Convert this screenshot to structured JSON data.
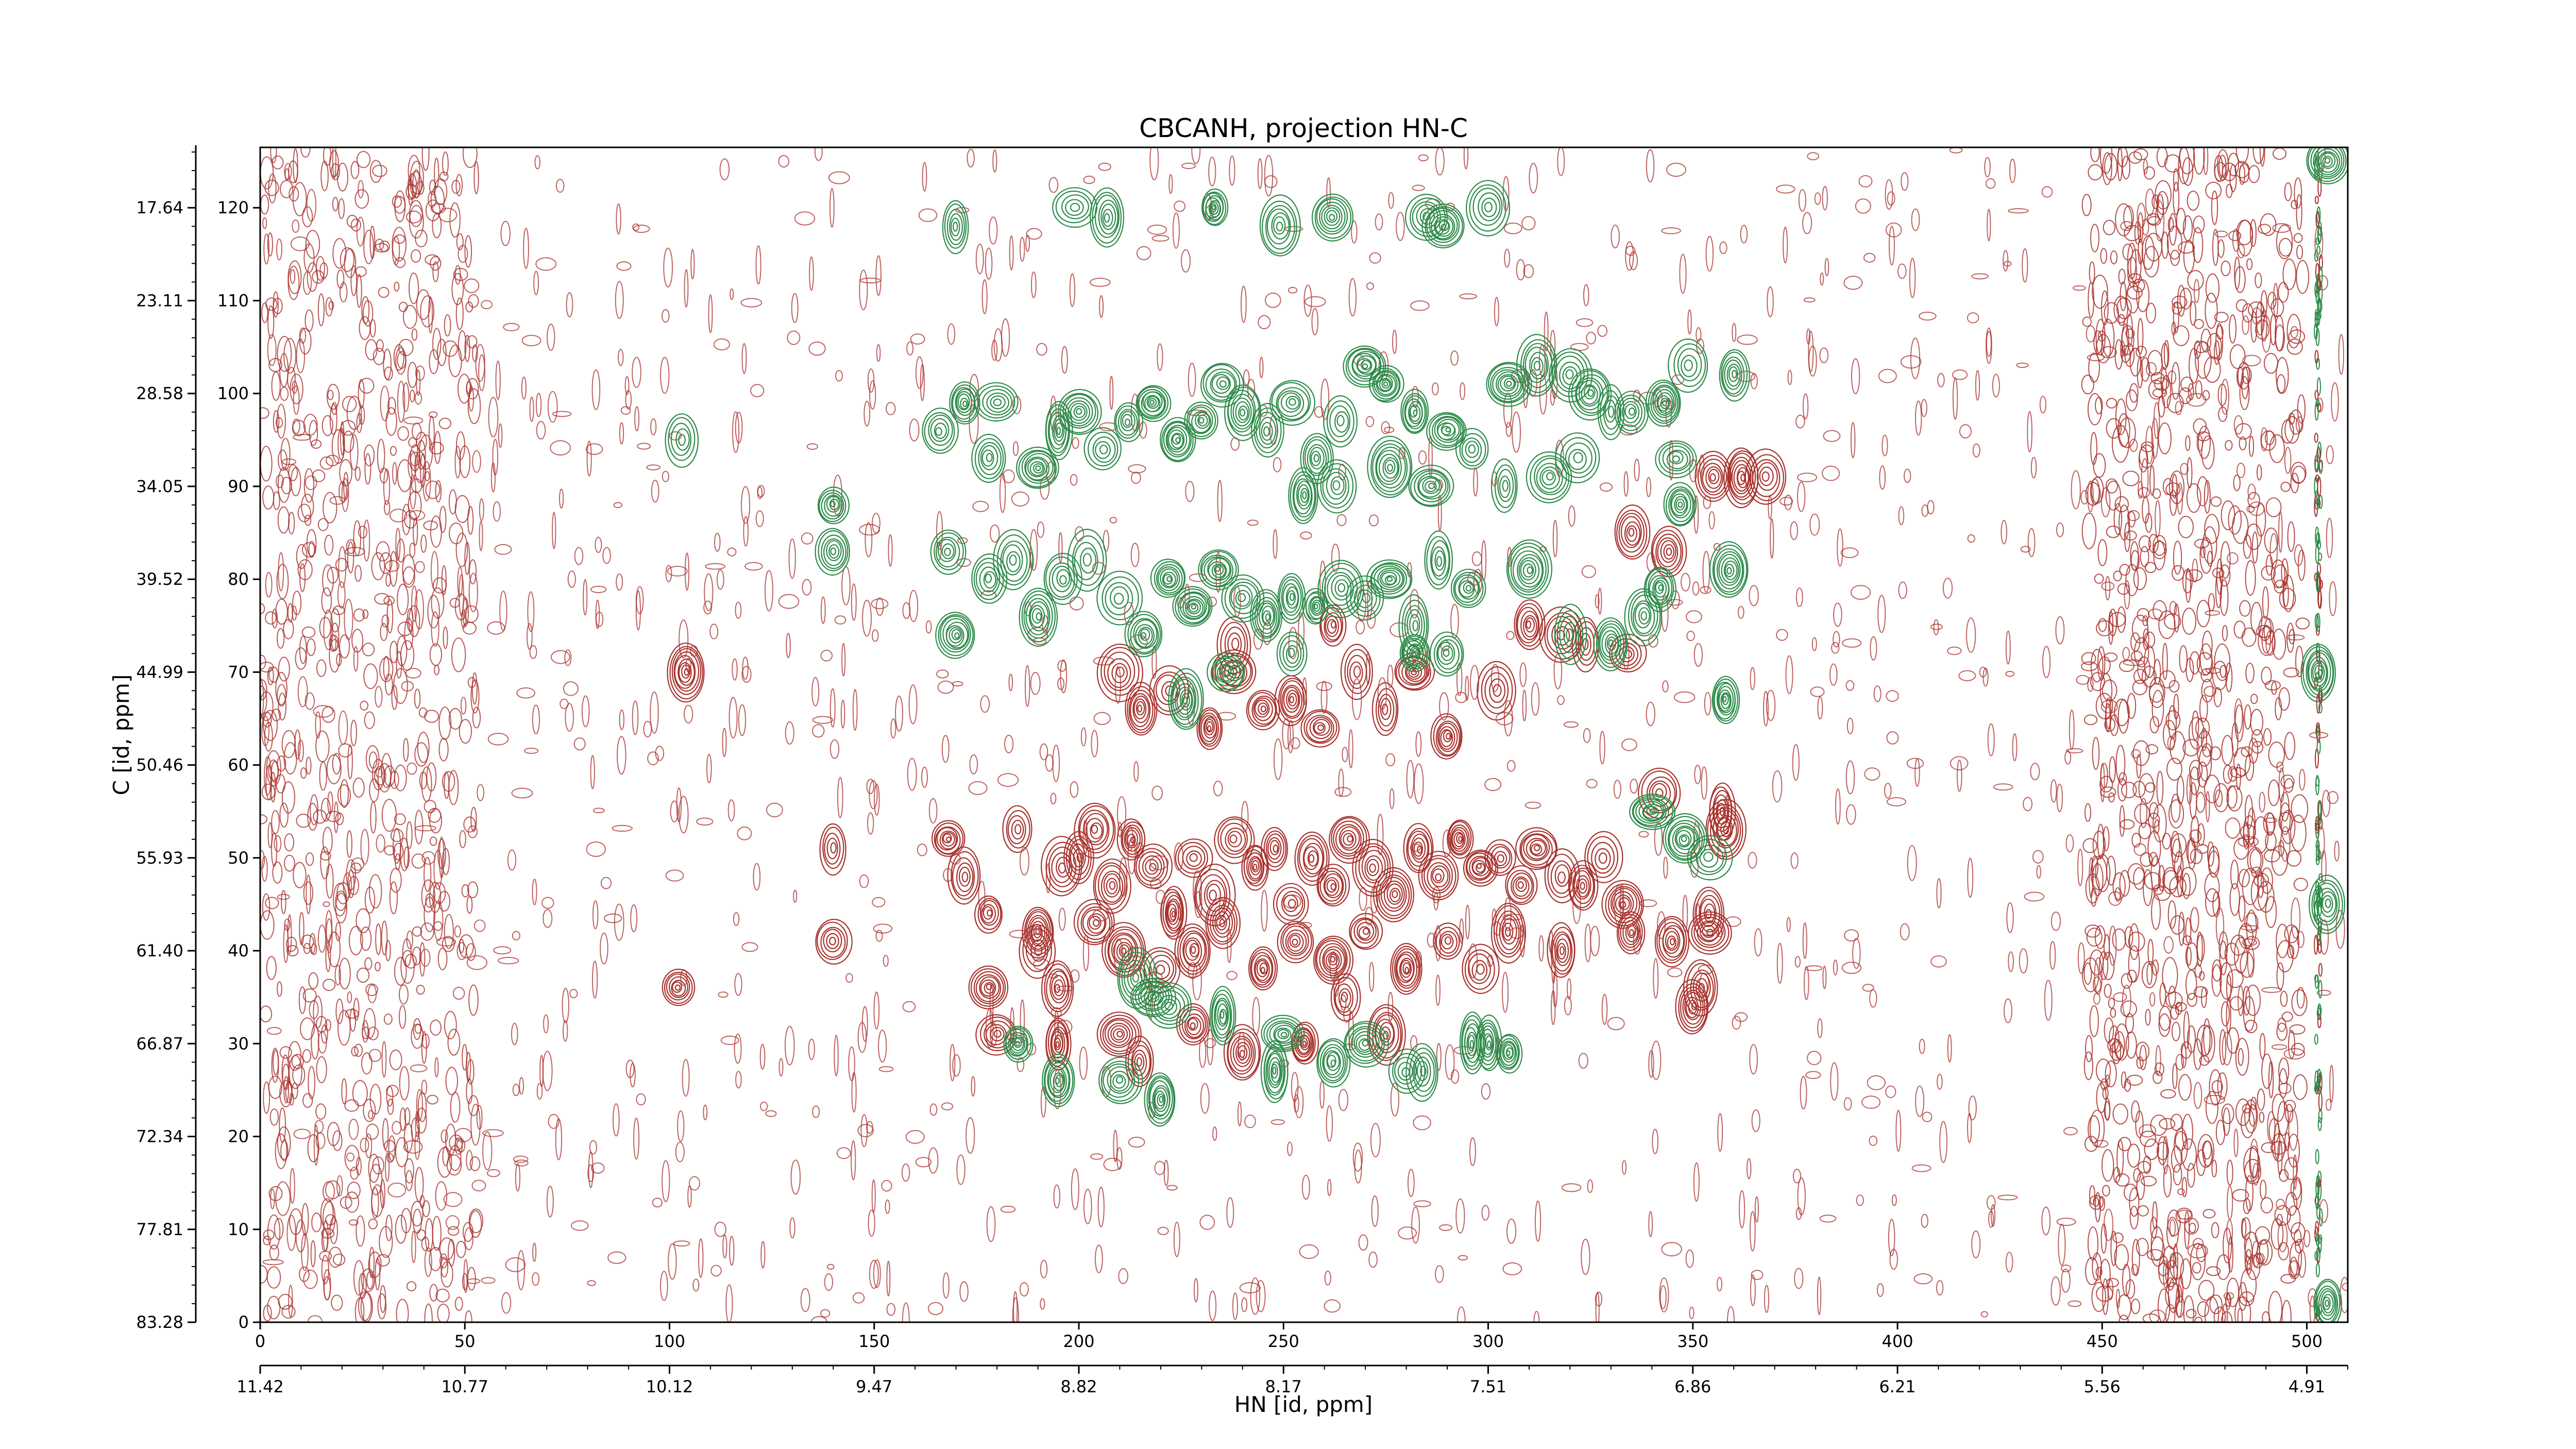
{
  "chart_data": {
    "type": "contour",
    "title": "CBCANH, projection HN-C",
    "xlabel": "HN [id, ppm]",
    "ylabel": "C [id, ppm]",
    "x_index_ticks": [
      "0",
      "50",
      "100",
      "150",
      "200",
      "250",
      "300",
      "350",
      "400",
      "450",
      "500"
    ],
    "x_ppm_ticks": [
      "11.42",
      "10.77",
      "10.12",
      "9.47",
      "8.82",
      "8.17",
      "7.51",
      "6.86",
      "6.21",
      "5.56",
      "4.91"
    ],
    "y_index_ticks": [
      "0",
      "10",
      "20",
      "30",
      "40",
      "50",
      "60",
      "70",
      "80",
      "90",
      "100",
      "110",
      "120"
    ],
    "y_ppm_ticks": [
      "83.28",
      "77.81",
      "72.34",
      "66.87",
      "61.40",
      "55.93",
      "50.46",
      "44.99",
      "39.52",
      "34.05",
      "28.58",
      "23.11",
      "17.64"
    ],
    "xlim": [
      0,
      510
    ],
    "ylim": [
      0,
      126.5
    ],
    "grid": false,
    "colors": {
      "positive": "#a8322d",
      "negative": "#2e8b4a"
    },
    "positive_peaks": [
      [
        104,
        70
      ],
      [
        140,
        51
      ],
      [
        140,
        41
      ],
      [
        102,
        36
      ],
      [
        168,
        52
      ],
      [
        172,
        48
      ],
      [
        178,
        44
      ],
      [
        185,
        53
      ],
      [
        190,
        42
      ],
      [
        196,
        49
      ],
      [
        200,
        50
      ],
      [
        204,
        53
      ],
      [
        208,
        47
      ],
      [
        213,
        52
      ],
      [
        218,
        49
      ],
      [
        223,
        44
      ],
      [
        228,
        50
      ],
      [
        233,
        46
      ],
      [
        238,
        52
      ],
      [
        243,
        49
      ],
      [
        248,
        51
      ],
      [
        252,
        45
      ],
      [
        257,
        50
      ],
      [
        262,
        47
      ],
      [
        266,
        52
      ],
      [
        272,
        49
      ],
      [
        277,
        46
      ],
      [
        283,
        51
      ],
      [
        288,
        48
      ],
      [
        293,
        52
      ],
      [
        298,
        49
      ],
      [
        303,
        50
      ],
      [
        308,
        47
      ],
      [
        312,
        51
      ],
      [
        318,
        48
      ],
      [
        323,
        47
      ],
      [
        328,
        50
      ],
      [
        333,
        45
      ],
      [
        190,
        40
      ],
      [
        195,
        36
      ],
      [
        204,
        43
      ],
      [
        211,
        40
      ],
      [
        220,
        38
      ],
      [
        228,
        40
      ],
      [
        235,
        43
      ],
      [
        245,
        38
      ],
      [
        253,
        41
      ],
      [
        262,
        39
      ],
      [
        270,
        42
      ],
      [
        280,
        38
      ],
      [
        290,
        41
      ],
      [
        298,
        38
      ],
      [
        305,
        42
      ],
      [
        318,
        40
      ],
      [
        335,
        42
      ],
      [
        345,
        41
      ],
      [
        354,
        42
      ],
      [
        357,
        55
      ],
      [
        354,
        44
      ],
      [
        352,
        36
      ],
      [
        350,
        34
      ],
      [
        178,
        36
      ],
      [
        180,
        31
      ],
      [
        195,
        30
      ],
      [
        210,
        31
      ],
      [
        215,
        28
      ],
      [
        228,
        32
      ],
      [
        240,
        29
      ],
      [
        255,
        30
      ],
      [
        265,
        35
      ],
      [
        275,
        31
      ],
      [
        210,
        70
      ],
      [
        215,
        66
      ],
      [
        222,
        68
      ],
      [
        232,
        64
      ],
      [
        238,
        70
      ],
      [
        245,
        66
      ],
      [
        252,
        67
      ],
      [
        259,
        64
      ],
      [
        268,
        70
      ],
      [
        275,
        66
      ],
      [
        282,
        70
      ],
      [
        290,
        63
      ],
      [
        302,
        68
      ],
      [
        238,
        73
      ],
      [
        262,
        75
      ],
      [
        310,
        75
      ],
      [
        318,
        74
      ],
      [
        324,
        73
      ],
      [
        334,
        72
      ],
      [
        342,
        57
      ],
      [
        335,
        85
      ],
      [
        344,
        83
      ],
      [
        355,
        91
      ],
      [
        362,
        91
      ],
      [
        368,
        91
      ],
      [
        358,
        53
      ]
    ],
    "negative_peaks": [
      [
        170,
        118
      ],
      [
        199,
        120
      ],
      [
        207,
        119
      ],
      [
        233,
        120
      ],
      [
        249,
        118
      ],
      [
        262,
        119
      ],
      [
        285,
        119
      ],
      [
        289,
        118
      ],
      [
        300,
        120
      ],
      [
        347,
        88
      ],
      [
        103,
        95
      ],
      [
        140,
        88
      ],
      [
        140,
        83
      ],
      [
        166,
        96
      ],
      [
        172,
        99
      ],
      [
        178,
        93
      ],
      [
        180,
        99
      ],
      [
        190,
        92
      ],
      [
        195,
        96
      ],
      [
        200,
        98
      ],
      [
        206,
        94
      ],
      [
        212,
        97
      ],
      [
        218,
        99
      ],
      [
        224,
        95
      ],
      [
        230,
        97
      ],
      [
        235,
        101
      ],
      [
        240,
        98
      ],
      [
        246,
        96
      ],
      [
        252,
        99
      ],
      [
        258,
        93
      ],
      [
        264,
        97
      ],
      [
        270,
        103
      ],
      [
        275,
        101
      ],
      [
        282,
        98
      ],
      [
        290,
        96
      ],
      [
        296,
        94
      ],
      [
        305,
        101
      ],
      [
        312,
        103
      ],
      [
        320,
        102
      ],
      [
        325,
        100
      ],
      [
        330,
        98
      ],
      [
        335,
        98
      ],
      [
        349,
        103
      ],
      [
        360,
        102
      ],
      [
        263,
        90
      ],
      [
        255,
        89
      ],
      [
        276,
        92
      ],
      [
        286,
        90
      ],
      [
        304,
        90
      ],
      [
        315,
        91
      ],
      [
        322,
        93
      ],
      [
        343,
        99
      ],
      [
        346,
        93
      ],
      [
        168,
        83
      ],
      [
        170,
        74
      ],
      [
        178,
        80
      ],
      [
        184,
        82
      ],
      [
        190,
        76
      ],
      [
        196,
        80
      ],
      [
        202,
        82
      ],
      [
        210,
        78
      ],
      [
        216,
        74
      ],
      [
        222,
        80
      ],
      [
        228,
        77
      ],
      [
        234,
        81
      ],
      [
        240,
        78
      ],
      [
        246,
        76
      ],
      [
        252,
        78
      ],
      [
        258,
        77
      ],
      [
        264,
        79
      ],
      [
        270,
        78
      ],
      [
        276,
        80
      ],
      [
        282,
        75
      ],
      [
        288,
        82
      ],
      [
        295,
        79
      ],
      [
        310,
        81
      ],
      [
        320,
        74
      ],
      [
        330,
        73
      ],
      [
        338,
        76
      ],
      [
        342,
        79
      ],
      [
        359,
        81
      ],
      [
        358,
        67
      ],
      [
        226,
        67
      ],
      [
        236,
        70
      ],
      [
        252,
        72
      ],
      [
        282,
        72
      ],
      [
        290,
        72
      ],
      [
        214,
        37
      ],
      [
        218,
        35
      ],
      [
        222,
        34
      ],
      [
        235,
        33
      ],
      [
        248,
        27
      ],
      [
        250,
        31
      ],
      [
        262,
        28
      ],
      [
        270,
        30
      ],
      [
        280,
        27
      ],
      [
        284,
        27
      ],
      [
        296,
        30
      ],
      [
        300,
        30
      ],
      [
        305,
        29
      ],
      [
        185,
        30
      ],
      [
        195,
        26
      ],
      [
        210,
        26
      ],
      [
        220,
        24
      ],
      [
        340,
        55
      ],
      [
        348,
        52
      ],
      [
        354,
        50
      ],
      [
        505,
        125
      ],
      [
        505,
        2
      ],
      [
        503,
        70
      ],
      [
        505,
        45
      ]
    ]
  }
}
